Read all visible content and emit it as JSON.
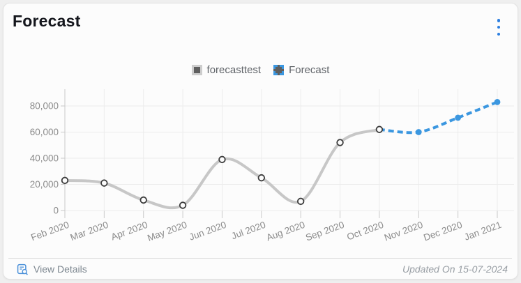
{
  "card": {
    "title": "Forecast",
    "view_details": "View Details",
    "updated_on": "Updated On 15-07-2024"
  },
  "icons": {
    "menu": "kebab-vertical-three-dots",
    "view_details": "report-with-magnifier",
    "legend_series": "gray-square-marker",
    "legend_forecast": "dashed-blue-square-marker"
  },
  "colors": {
    "accent_blue": "#3b97e0",
    "menu_blue": "#2d7fe0",
    "series_gray": "#c7c7c7",
    "marker_stroke": "#3c3c3c",
    "grid": "#ececec",
    "axis": "#c9c9c9",
    "axis_label": "#8b8b8b"
  },
  "chart_data": {
    "type": "line",
    "title": "Forecast",
    "categories": [
      "Feb 2020",
      "Mar 2020",
      "Apr 2020",
      "May 2020",
      "Jun 2020",
      "Jul 2020",
      "Aug 2020",
      "Sep 2020",
      "Oct 2020",
      "Nov 2020",
      "Dec 2020",
      "Jan 2021"
    ],
    "series": [
      {
        "name": "forecasttest",
        "color": "#c7c7c7",
        "dashed": false,
        "values": [
          23000,
          21000,
          8000,
          4000,
          39000,
          25000,
          7000,
          52000,
          62000,
          null,
          null,
          null
        ]
      },
      {
        "name": "Forecast",
        "color": "#3b97e0",
        "dashed": true,
        "values": [
          null,
          null,
          null,
          null,
          null,
          null,
          null,
          null,
          62000,
          60000,
          71000,
          83000
        ]
      }
    ],
    "xlabel": "",
    "ylabel": "",
    "ylim": [
      0,
      80000
    ],
    "ytick_step": 20000,
    "grid": true,
    "legend_position": "top",
    "curve": "smooth"
  }
}
